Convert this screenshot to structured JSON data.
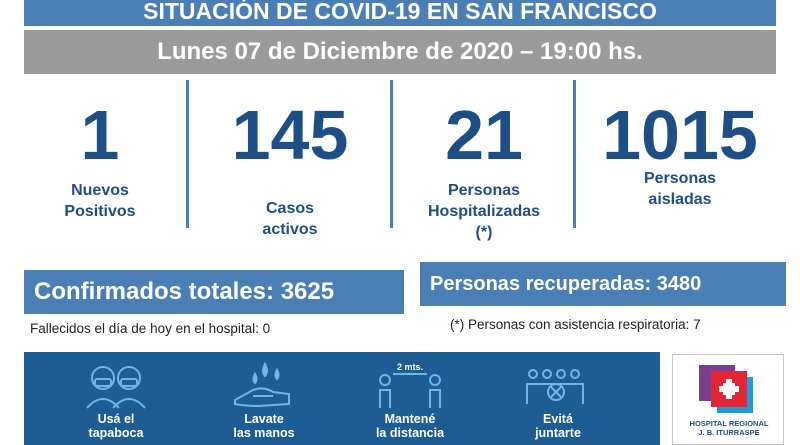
{
  "header": {
    "title": "SITUACIÓN DE COVID-19 EN SAN FRANCISCO",
    "date": "Lunes 07 de Diciembre de 2020 – 19:00 hs."
  },
  "stats": [
    {
      "value": "1",
      "label_line1": "Nuevos",
      "label_line2": "Positivos",
      "label_line3": ""
    },
    {
      "value": "145",
      "label_line1": "Casos",
      "label_line2": "activos",
      "label_line3": ""
    },
    {
      "value": "21",
      "label_line1": "Personas",
      "label_line2": "Hospitalizadas",
      "label_line3": "(*)"
    },
    {
      "value": "1015",
      "label_line1": "Personas",
      "label_line2": "aisladas",
      "label_line3": ""
    }
  ],
  "totals": {
    "confirmados": "Confirmados totales: 3625",
    "recuperadas": "Personas recuperadas: 3480",
    "fallecidos_note": "Fallecidos el día de hoy en el hospital: 0",
    "respiratoria_note": "(*) Personas con asistencia respiratoria: 7"
  },
  "tips": [
    {
      "line1": "Usá el",
      "line2": "tapaboca",
      "icon": "mask-people-icon"
    },
    {
      "line1": "Lavate",
      "line2": "las manos",
      "icon": "hand-wash-icon"
    },
    {
      "line1": "Mantené",
      "line2": "la distancia",
      "icon": "distance-icon",
      "badge": "2 mts."
    },
    {
      "line1": "Evitá",
      "line2": "juntarte",
      "icon": "no-gathering-icon"
    }
  ],
  "logo": {
    "line1": "HOSPITAL REGIONAL",
    "line2": "J. B. ITURRASPE"
  },
  "colors": {
    "accent_blue": "#4a7fb5",
    "dark_blue": "#1e4e86",
    "panel_blue": "#1e5d94",
    "gray": "#9b9b9b"
  }
}
